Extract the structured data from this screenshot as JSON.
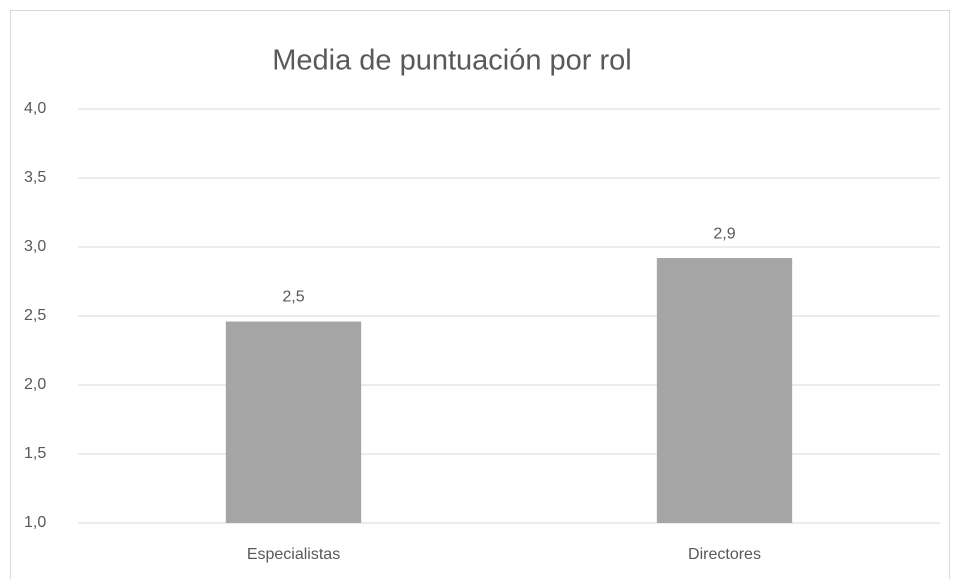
{
  "chart_data": {
    "type": "bar",
    "title": "Media de puntuación por rol",
    "categories": [
      "Especialistas",
      "Directores"
    ],
    "values": [
      2.46,
      2.92
    ],
    "value_labels": [
      "2,5",
      "2,9"
    ],
    "color": "#a5a5a5",
    "ylim": [
      1,
      4
    ],
    "yticks": [
      {
        "value": 1,
        "label": "1,0"
      },
      {
        "value": 1.5,
        "label": "1,5"
      },
      {
        "value": 2,
        "label": "2,0"
      },
      {
        "value": 2.5,
        "label": "2,5"
      },
      {
        "value": 3,
        "label": "3,0"
      },
      {
        "value": 3.5,
        "label": "3,5"
      },
      {
        "value": 4,
        "label": "4,0"
      }
    ],
    "grid": true
  }
}
